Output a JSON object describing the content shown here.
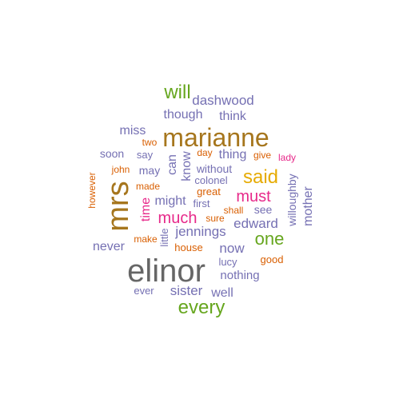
{
  "words": [
    {
      "text": "elinor",
      "color": "#666666"
    },
    {
      "text": "marianne",
      "color": "#A6761D"
    },
    {
      "text": "mrs",
      "color": "#A6761D"
    },
    {
      "text": "every",
      "color": "#66A61E"
    },
    {
      "text": "said",
      "color": "#E6AB02"
    },
    {
      "text": "will",
      "color": "#66A61E"
    },
    {
      "text": "one",
      "color": "#66A61E"
    },
    {
      "text": "much",
      "color": "#E7298A"
    },
    {
      "text": "must",
      "color": "#E7298A"
    },
    {
      "text": "dashwood",
      "color": "#7570B3"
    },
    {
      "text": "edward",
      "color": "#7570B3"
    },
    {
      "text": "sister",
      "color": "#7570B3"
    },
    {
      "text": "now",
      "color": "#7570B3"
    },
    {
      "text": "jennings",
      "color": "#7570B3"
    },
    {
      "text": "though",
      "color": "#7570B3"
    },
    {
      "text": "think",
      "color": "#7570B3"
    },
    {
      "text": "miss",
      "color": "#7570B3"
    },
    {
      "text": "thing",
      "color": "#7570B3"
    },
    {
      "text": "time",
      "color": "#E7298A"
    },
    {
      "text": "can",
      "color": "#7570B3"
    },
    {
      "text": "know",
      "color": "#7570B3"
    },
    {
      "text": "might",
      "color": "#7570B3"
    },
    {
      "text": "mother",
      "color": "#7570B3"
    },
    {
      "text": "never",
      "color": "#7570B3"
    },
    {
      "text": "well",
      "color": "#7570B3"
    },
    {
      "text": "nothing",
      "color": "#7570B3"
    },
    {
      "text": "willoughby",
      "color": "#7570B3"
    },
    {
      "text": "without",
      "color": "#7570B3"
    },
    {
      "text": "soon",
      "color": "#7570B3"
    },
    {
      "text": "may",
      "color": "#7570B3"
    },
    {
      "text": "see",
      "color": "#7570B3"
    },
    {
      "text": "colonel",
      "color": "#7570B3"
    },
    {
      "text": "say",
      "color": "#7570B3"
    },
    {
      "text": "first",
      "color": "#7570B3"
    },
    {
      "text": "little",
      "color": "#7570B3"
    },
    {
      "text": "lucy",
      "color": "#7570B3"
    },
    {
      "text": "ever",
      "color": "#7570B3"
    },
    {
      "text": "lady",
      "color": "#E7298A"
    },
    {
      "text": "good",
      "color": "#D95F02"
    },
    {
      "text": "great",
      "color": "#D95F02"
    },
    {
      "text": "shall",
      "color": "#D95F02"
    },
    {
      "text": "sure",
      "color": "#D95F02"
    },
    {
      "text": "house",
      "color": "#D95F02"
    },
    {
      "text": "make",
      "color": "#D95F02"
    },
    {
      "text": "made",
      "color": "#D95F02"
    },
    {
      "text": "two",
      "color": "#D95F02"
    },
    {
      "text": "day",
      "color": "#D95F02"
    },
    {
      "text": "give",
      "color": "#D95F02"
    },
    {
      "text": "john",
      "color": "#D95F02"
    },
    {
      "text": "however",
      "color": "#D95F02"
    }
  ]
}
